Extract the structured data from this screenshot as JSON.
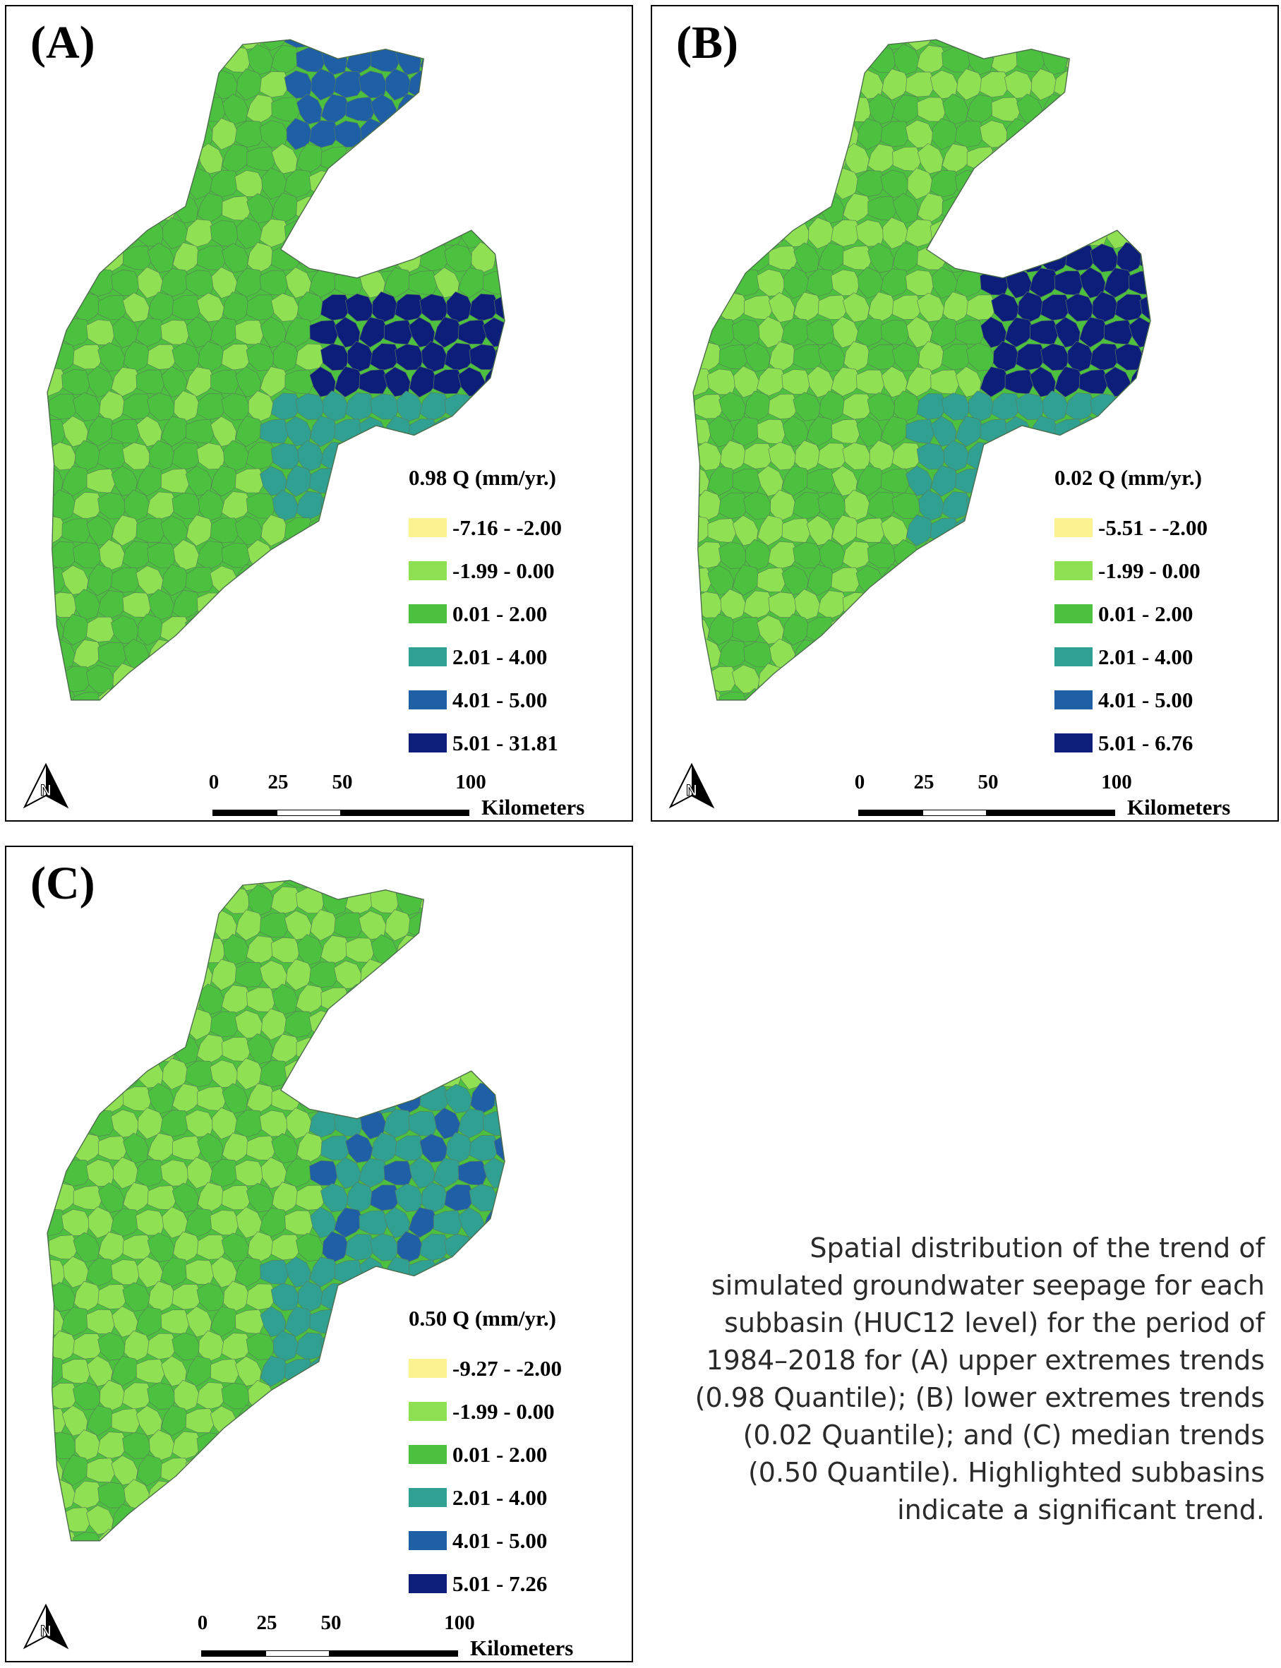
{
  "palette": [
    "#fbf291",
    "#8fe052",
    "#4cc03f",
    "#2fa092",
    "#1f5fa6",
    "#0d1e7a"
  ],
  "scale_bar": {
    "ticks": [
      "0",
      "25",
      "50",
      "100"
    ],
    "unit": "Kilometers"
  },
  "north_arrow": {
    "glyph": "N",
    "icon": "north-arrow-icon"
  },
  "panels": [
    {
      "label": "(A)",
      "legend_title": "0.98 Q (mm/yr.)",
      "classes": [
        "-7.16 - -2.00",
        "-1.99 - 0.00",
        "0.01 - 2.00",
        "2.01 - 4.00",
        "4.01 - 5.00",
        "5.01 - 31.81"
      ]
    },
    {
      "label": "(B)",
      "legend_title": "0.02 Q (mm/yr.)",
      "classes": [
        "-5.51 - -2.00",
        "-1.99 - 0.00",
        "0.01 - 2.00",
        "2.01 - 4.00",
        "4.01 - 5.00",
        "5.01 - 6.76"
      ]
    },
    {
      "label": "(C)",
      "legend_title": "0.50 Q (mm/yr.)",
      "classes": [
        "-9.27 - -2.00",
        "-1.99 - 0.00",
        "0.01 - 2.00",
        "2.01 - 4.00",
        "4.01 - 5.00",
        "5.01 - 7.26"
      ]
    }
  ],
  "caption": "Spatial distribution of the trend of simulated groundwater seepage for each subbasin (HUC12 level) for the period of 1984–2018 for (A) upper extremes trends (0.98 Quantile); (B) lower extremes trends (0.02 Quantile); and (C) median trends (0.50 Quantile). Highlighted subbasins indicate a significant trend."
}
